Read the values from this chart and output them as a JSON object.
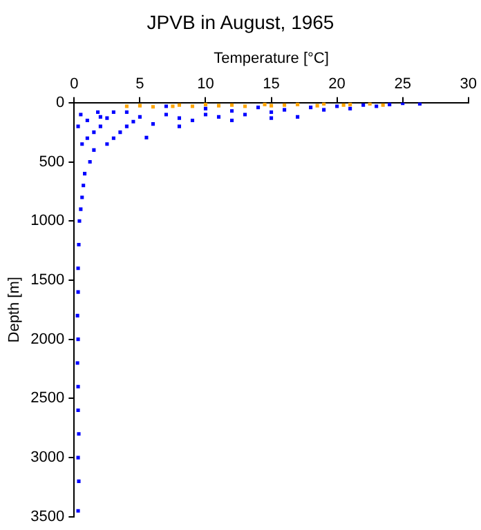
{
  "chart_data": {
    "type": "scatter",
    "title": "JPVB in August, 1965",
    "xlabel": "Temperature [°C]",
    "ylabel": "Depth [m]",
    "xlim": [
      0,
      30
    ],
    "xticks": [
      0,
      5,
      10,
      15,
      20,
      25,
      30
    ],
    "ylim": [
      3500,
      0
    ],
    "yticks": [
      0,
      500,
      1000,
      1500,
      2000,
      2500,
      3000,
      3500
    ],
    "grid": false,
    "legend": false,
    "marker": "square",
    "series": [
      {
        "color": "#0000ff",
        "x": [
          26.3,
          25,
          24,
          22,
          20,
          18,
          16,
          15,
          14,
          13,
          12,
          11,
          10,
          9,
          8,
          7,
          6,
          5.5,
          5,
          4.5,
          4,
          3.5,
          3,
          2.5,
          2,
          1.5,
          1.2,
          1,
          0.8,
          0.7,
          0.6,
          0.5,
          0.4,
          0.35,
          0.3,
          0.3,
          0.25,
          0.3,
          0.25,
          0.3,
          0.3,
          0.35,
          0.3,
          0.35,
          0.3,
          0.5,
          1,
          2,
          3,
          0.3,
          1.5,
          17,
          19,
          21,
          23,
          12,
          8,
          15,
          10,
          7,
          4,
          2.5,
          1.8,
          0.6
        ],
        "values": [
          10,
          5,
          15,
          20,
          30,
          40,
          60,
          80,
          40,
          100,
          70,
          120,
          100,
          150,
          130,
          100,
          180,
          295,
          120,
          160,
          200,
          250,
          300,
          350,
          200,
          400,
          500,
          300,
          600,
          700,
          800,
          900,
          1000,
          1200,
          1400,
          1600,
          1800,
          2000,
          2200,
          2400,
          2600,
          2800,
          3000,
          3200,
          3450,
          100,
          150,
          120,
          80,
          200,
          250,
          120,
          60,
          50,
          30,
          150,
          200,
          130,
          50,
          30,
          80,
          130,
          80,
          350
        ]
      },
      {
        "color": "#ffa500",
        "x": [
          4,
          5,
          6,
          7.5,
          8,
          9,
          10,
          11,
          12,
          13,
          14.5,
          15,
          16,
          17,
          18.5,
          19,
          20.5,
          21,
          22.5,
          23.5
        ],
        "values": [
          30,
          25,
          35,
          30,
          20,
          30,
          15,
          25,
          20,
          30,
          15,
          25,
          20,
          15,
          25,
          10,
          20,
          15,
          10,
          20
        ]
      }
    ]
  }
}
